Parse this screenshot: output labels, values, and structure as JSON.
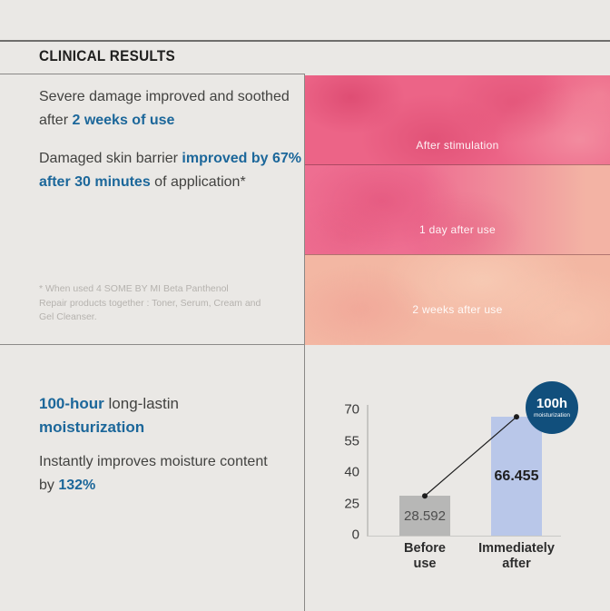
{
  "colors": {
    "background": "#eae8e5",
    "accent_blue": "#1c679a",
    "badge_navy": "#114f7c",
    "bar_gray": "#b7b7b6",
    "bar_blue": "#b9c7e9"
  },
  "header": {
    "title": "CLINICAL RESULTS"
  },
  "results_text": {
    "para1": {
      "normal": "Severe damage improved and soothed after ",
      "highlight": "2 weeks of use"
    },
    "para2": {
      "normal1": "Damaged skin barrier ",
      "highlight": "improved by 67% after 30 minutes",
      "normal2": " of application*"
    },
    "footnote_lines": [
      "* When used 4 SOME BY MI Beta Panthenol",
      "Repair products together : Toner, Serum, Cream and",
      "Gel Cleanser."
    ]
  },
  "photo_panels": [
    {
      "label": "After stimulation"
    },
    {
      "label": "1 day after use"
    },
    {
      "label": "2 weeks after use"
    }
  ],
  "moisture_text": {
    "heading": {
      "highlight1": "100-hour",
      "normal": " long-lastin ",
      "highlight2": "moisturization"
    },
    "para": {
      "normal": "Instantly improves moisture content by ",
      "highlight": "132%"
    }
  },
  "chart_data": {
    "type": "bar",
    "title": "",
    "xlabel": "",
    "ylabel": "",
    "categories": [
      "Before use",
      "Immediately after"
    ],
    "values": [
      28.592,
      66.455
    ],
    "value_labels": [
      "28.592",
      "66.455"
    ],
    "yticks": [
      0,
      25,
      40,
      55,
      70
    ],
    "ylim": [
      0,
      70
    ],
    "grid": false,
    "legend": null,
    "bar_colors": [
      "#b7b7b6",
      "#b9c7e9"
    ],
    "connector_line": true,
    "badge": {
      "line1": "100h",
      "line2": "moisturization",
      "color": "#114f7c"
    }
  }
}
